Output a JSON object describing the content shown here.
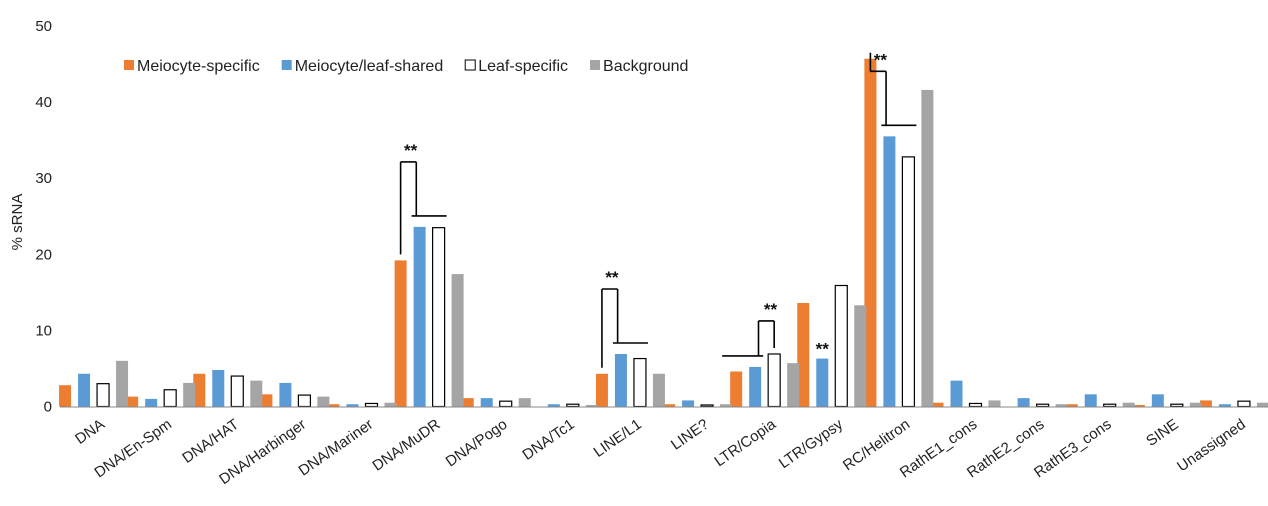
{
  "chart_data": {
    "type": "bar",
    "title": "",
    "xlabel": "",
    "ylabel": "% sRNA",
    "ylim": [
      0,
      50
    ],
    "yticks": [
      0,
      10,
      20,
      30,
      40,
      50
    ],
    "grid": false,
    "legend_position": "top-left",
    "categories": [
      "DNA",
      "DNA/En-Spm",
      "DNA/HAT",
      "DNA/Harbinger",
      "DNA/Mariner",
      "DNA/MuDR",
      "DNA/Pogo",
      "DNA/Tc1",
      "LINE/L1",
      "LINE?",
      "LTR/Copia",
      "LTR/Gypsy",
      "RC/Helitron",
      "RathE1_cons",
      "RathE2_cons",
      "RathE3_cons",
      "SINE",
      "Unassigned"
    ],
    "series": [
      {
        "name": "Meiocyte-specific",
        "color": "#ED7D31",
        "values": [
          2.8,
          1.3,
          4.3,
          1.6,
          0.3,
          19.2,
          1.1,
          0.0,
          4.3,
          0.3,
          4.6,
          13.6,
          45.7,
          0.5,
          0.0,
          0.3,
          0.2,
          0.8
        ]
      },
      {
        "name": "Meiocyte/leaf-shared",
        "color": "#5B9BD5",
        "values": [
          4.3,
          1.0,
          4.8,
          3.1,
          0.3,
          23.6,
          1.1,
          0.3,
          6.9,
          0.8,
          5.2,
          6.3,
          35.5,
          3.4,
          1.1,
          1.6,
          1.6,
          0.3
        ]
      },
      {
        "name": "Leaf-specific",
        "color": "#FFFFFF",
        "stroke": "#000000",
        "values": [
          3.0,
          2.2,
          4.0,
          1.5,
          0.4,
          23.5,
          0.7,
          0.3,
          6.3,
          0.2,
          6.9,
          15.9,
          32.8,
          0.4,
          0.3,
          0.3,
          0.3,
          0.7
        ]
      },
      {
        "name": "Background",
        "color": "#A5A5A5",
        "values": [
          6.0,
          3.1,
          3.4,
          1.3,
          0.5,
          17.4,
          1.1,
          0.2,
          4.3,
          0.3,
          5.7,
          13.3,
          41.6,
          0.8,
          0.3,
          0.5,
          0.5,
          0.5
        ]
      }
    ],
    "annotations": [
      {
        "type": "bracket",
        "category": "DNA/MuDR",
        "text": "**",
        "from_series": 0,
        "to_series": [
          1,
          2
        ]
      },
      {
        "type": "bracket",
        "category": "LINE/L1",
        "text": "**",
        "from_series": 0,
        "to_series": [
          1,
          2
        ]
      },
      {
        "type": "bracket",
        "category": "LTR/Copia",
        "text": "**",
        "from_series": 2,
        "to_series": [
          0,
          1
        ],
        "reversed": true
      },
      {
        "type": "bracket",
        "category": "RC/Helitron",
        "text": "**",
        "from_series": 0,
        "to_series": [
          1,
          2
        ]
      },
      {
        "type": "label",
        "category": "LTR/Gypsy",
        "series": 1,
        "text": "**"
      }
    ]
  }
}
